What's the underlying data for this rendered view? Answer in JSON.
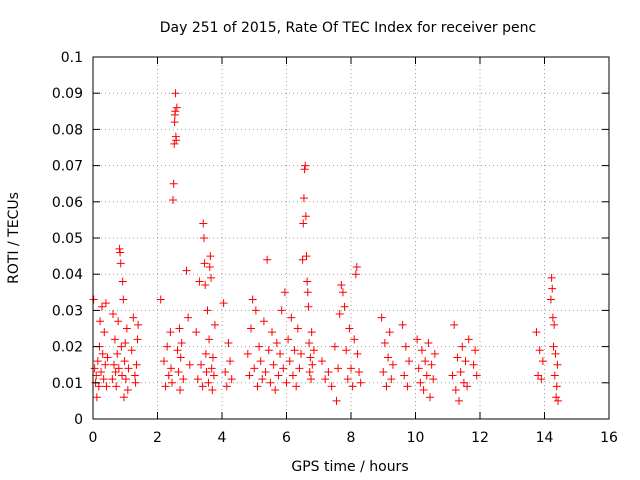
{
  "chart_data": {
    "type": "scatter",
    "title": "Day 251 of 2015, Rate Of TEC Index for receiver penc",
    "xlabel": "GPS time / hours",
    "ylabel": "ROTI / TECUs",
    "xlim": [
      0,
      16
    ],
    "ylim": [
      0,
      0.1
    ],
    "xticks": [
      0,
      2,
      4,
      6,
      8,
      10,
      12,
      14,
      16
    ],
    "xtick_labels": [
      "0",
      "2",
      "4",
      "6",
      "8",
      "10",
      "12",
      "14",
      "16"
    ],
    "yticks": [
      0,
      0.01,
      0.02,
      0.03,
      0.04,
      0.05,
      0.06,
      0.07,
      0.08,
      0.09,
      0.1
    ],
    "ytick_labels": [
      "0",
      "0.01",
      "0.02",
      "0.03",
      "0.04",
      "0.05",
      "0.06",
      "0.07",
      "0.08",
      "0.09",
      "0.1"
    ],
    "grid": true,
    "marker": "+",
    "color": "#ff0000",
    "series": [
      {
        "name": "ROTI",
        "points": [
          [
            0.02,
            0.033
          ],
          [
            0.05,
            0.014
          ],
          [
            0.08,
            0.01
          ],
          [
            0.1,
            0.012
          ],
          [
            0.12,
            0.006
          ],
          [
            0.15,
            0.016
          ],
          [
            0.18,
            0.009
          ],
          [
            0.2,
            0.02
          ],
          [
            0.22,
            0.027
          ],
          [
            0.25,
            0.013
          ],
          [
            0.28,
            0.031
          ],
          [
            0.3,
            0.018
          ],
          [
            0.33,
            0.011
          ],
          [
            0.35,
            0.024
          ],
          [
            0.38,
            0.015
          ],
          [
            0.4,
            0.032
          ],
          [
            0.42,
            0.009
          ],
          [
            0.45,
            0.017
          ],
          [
            0.6,
            0.011
          ],
          [
            0.62,
            0.029
          ],
          [
            0.65,
            0.015
          ],
          [
            0.68,
            0.022
          ],
          [
            0.7,
            0.013
          ],
          [
            0.72,
            0.009
          ],
          [
            0.75,
            0.018
          ],
          [
            0.78,
            0.027
          ],
          [
            0.8,
            0.014
          ],
          [
            0.82,
            0.047
          ],
          [
            0.84,
            0.046
          ],
          [
            0.86,
            0.043
          ],
          [
            0.88,
            0.02
          ],
          [
            0.9,
            0.012
          ],
          [
            0.92,
            0.038
          ],
          [
            0.94,
            0.033
          ],
          [
            0.96,
            0.006
          ],
          [
            0.98,
            0.016
          ],
          [
            1.0,
            0.021
          ],
          [
            1.02,
            0.011
          ],
          [
            1.05,
            0.025
          ],
          [
            1.08,
            0.008
          ],
          [
            1.1,
            0.014
          ],
          [
            1.2,
            0.019
          ],
          [
            1.25,
            0.028
          ],
          [
            1.3,
            0.012
          ],
          [
            1.32,
            0.01
          ],
          [
            1.35,
            0.015
          ],
          [
            1.38,
            0.022
          ],
          [
            1.4,
            0.026
          ],
          [
            2.1,
            0.033
          ],
          [
            2.2,
            0.016
          ],
          [
            2.25,
            0.009
          ],
          [
            2.3,
            0.02
          ],
          [
            2.35,
            0.012
          ],
          [
            2.4,
            0.024
          ],
          [
            2.42,
            0.014
          ],
          [
            2.45,
            0.01
          ],
          [
            2.48,
            0.0605
          ],
          [
            2.5,
            0.065
          ],
          [
            2.52,
            0.076
          ],
          [
            2.53,
            0.082
          ],
          [
            2.54,
            0.084
          ],
          [
            2.55,
            0.085
          ],
          [
            2.56,
            0.09
          ],
          [
            2.57,
            0.078
          ],
          [
            2.58,
            0.077
          ],
          [
            2.6,
            0.086
          ],
          [
            2.62,
            0.019
          ],
          [
            2.65,
            0.013
          ],
          [
            2.68,
            0.025
          ],
          [
            2.7,
            0.008
          ],
          [
            2.72,
            0.017
          ],
          [
            2.75,
            0.021
          ],
          [
            2.8,
            0.011
          ],
          [
            2.9,
            0.041
          ],
          [
            2.95,
            0.028
          ],
          [
            3.0,
            0.015
          ],
          [
            3.2,
            0.024
          ],
          [
            3.25,
            0.011
          ],
          [
            3.3,
            0.038
          ],
          [
            3.35,
            0.015
          ],
          [
            3.4,
            0.009
          ],
          [
            3.42,
            0.054
          ],
          [
            3.44,
            0.05
          ],
          [
            3.46,
            0.043
          ],
          [
            3.48,
            0.037
          ],
          [
            3.5,
            0.018
          ],
          [
            3.52,
            0.013
          ],
          [
            3.55,
            0.03
          ],
          [
            3.58,
            0.01
          ],
          [
            3.6,
            0.022
          ],
          [
            3.62,
            0.042
          ],
          [
            3.64,
            0.045
          ],
          [
            3.66,
            0.039
          ],
          [
            3.68,
            0.014
          ],
          [
            3.7,
            0.008
          ],
          [
            3.72,
            0.017
          ],
          [
            3.75,
            0.012
          ],
          [
            3.78,
            0.026
          ],
          [
            4.05,
            0.032
          ],
          [
            4.1,
            0.013
          ],
          [
            4.15,
            0.009
          ],
          [
            4.2,
            0.021
          ],
          [
            4.25,
            0.016
          ],
          [
            4.3,
            0.011
          ],
          [
            4.8,
            0.018
          ],
          [
            4.85,
            0.012
          ],
          [
            4.9,
            0.025
          ],
          [
            4.95,
            0.033
          ],
          [
            5.0,
            0.014
          ],
          [
            5.05,
            0.03
          ],
          [
            5.1,
            0.009
          ],
          [
            5.15,
            0.02
          ],
          [
            5.2,
            0.016
          ],
          [
            5.25,
            0.011
          ],
          [
            5.3,
            0.027
          ],
          [
            5.35,
            0.013
          ],
          [
            5.4,
            0.044
          ],
          [
            5.45,
            0.019
          ],
          [
            5.5,
            0.01
          ],
          [
            5.55,
            0.024
          ],
          [
            5.6,
            0.015
          ],
          [
            5.65,
            0.008
          ],
          [
            5.7,
            0.021
          ],
          [
            5.75,
            0.012
          ],
          [
            5.8,
            0.018
          ],
          [
            5.85,
            0.03
          ],
          [
            5.9,
            0.014
          ],
          [
            5.95,
            0.035
          ],
          [
            6.0,
            0.01
          ],
          [
            6.05,
            0.022
          ],
          [
            6.1,
            0.016
          ],
          [
            6.15,
            0.028
          ],
          [
            6.2,
            0.012
          ],
          [
            6.25,
            0.019
          ],
          [
            6.3,
            0.009
          ],
          [
            6.35,
            0.025
          ],
          [
            6.4,
            0.014
          ],
          [
            6.45,
            0.018
          ],
          [
            6.5,
            0.044
          ],
          [
            6.52,
            0.054
          ],
          [
            6.54,
            0.061
          ],
          [
            6.56,
            0.069
          ],
          [
            6.58,
            0.07
          ],
          [
            6.6,
            0.056
          ],
          [
            6.62,
            0.045
          ],
          [
            6.64,
            0.038
          ],
          [
            6.66,
            0.035
          ],
          [
            6.68,
            0.031
          ],
          [
            6.7,
            0.021
          ],
          [
            6.72,
            0.013
          ],
          [
            6.74,
            0.017
          ],
          [
            6.76,
            0.011
          ],
          [
            6.78,
            0.024
          ],
          [
            6.8,
            0.015
          ],
          [
            6.85,
            0.019
          ],
          [
            7.1,
            0.016
          ],
          [
            7.2,
            0.011
          ],
          [
            7.3,
            0.013
          ],
          [
            7.4,
            0.009
          ],
          [
            7.5,
            0.02
          ],
          [
            7.55,
            0.005
          ],
          [
            7.6,
            0.014
          ],
          [
            7.65,
            0.029
          ],
          [
            7.7,
            0.037
          ],
          [
            7.75,
            0.035
          ],
          [
            7.8,
            0.031
          ],
          [
            7.85,
            0.019
          ],
          [
            7.9,
            0.011
          ],
          [
            7.95,
            0.025
          ],
          [
            8.0,
            0.014
          ],
          [
            8.05,
            0.009
          ],
          [
            8.1,
            0.022
          ],
          [
            8.15,
            0.04
          ],
          [
            8.18,
            0.042
          ],
          [
            8.2,
            0.018
          ],
          [
            8.25,
            0.013
          ],
          [
            8.3,
            0.01
          ],
          [
            8.95,
            0.028
          ],
          [
            9.0,
            0.013
          ],
          [
            9.05,
            0.021
          ],
          [
            9.1,
            0.009
          ],
          [
            9.15,
            0.017
          ],
          [
            9.2,
            0.024
          ],
          [
            9.25,
            0.011
          ],
          [
            9.3,
            0.015
          ],
          [
            9.6,
            0.026
          ],
          [
            9.65,
            0.012
          ],
          [
            9.7,
            0.02
          ],
          [
            9.75,
            0.009
          ],
          [
            9.8,
            0.016
          ],
          [
            10.05,
            0.022
          ],
          [
            10.1,
            0.014
          ],
          [
            10.15,
            0.01
          ],
          [
            10.2,
            0.019
          ],
          [
            10.25,
            0.008
          ],
          [
            10.3,
            0.016
          ],
          [
            10.35,
            0.012
          ],
          [
            10.4,
            0.021
          ],
          [
            10.45,
            0.006
          ],
          [
            10.5,
            0.015
          ],
          [
            10.55,
            0.011
          ],
          [
            10.6,
            0.018
          ],
          [
            11.15,
            0.012
          ],
          [
            11.2,
            0.026
          ],
          [
            11.25,
            0.008
          ],
          [
            11.3,
            0.017
          ],
          [
            11.35,
            0.005
          ],
          [
            11.4,
            0.013
          ],
          [
            11.45,
            0.02
          ],
          [
            11.5,
            0.01
          ],
          [
            11.55,
            0.016
          ],
          [
            11.6,
            0.009
          ],
          [
            11.65,
            0.022
          ],
          [
            11.8,
            0.015
          ],
          [
            11.85,
            0.019
          ],
          [
            11.9,
            0.012
          ],
          [
            13.75,
            0.024
          ],
          [
            13.8,
            0.012
          ],
          [
            13.85,
            0.019
          ],
          [
            13.9,
            0.011
          ],
          [
            13.95,
            0.016
          ],
          [
            14.2,
            0.033
          ],
          [
            14.22,
            0.039
          ],
          [
            14.24,
            0.036
          ],
          [
            14.26,
            0.028
          ],
          [
            14.28,
            0.02
          ],
          [
            14.3,
            0.026
          ],
          [
            14.32,
            0.012
          ],
          [
            14.34,
            0.018
          ],
          [
            14.36,
            0.006
          ],
          [
            14.38,
            0.009
          ],
          [
            14.4,
            0.015
          ],
          [
            14.42,
            0.005
          ]
        ]
      }
    ]
  }
}
